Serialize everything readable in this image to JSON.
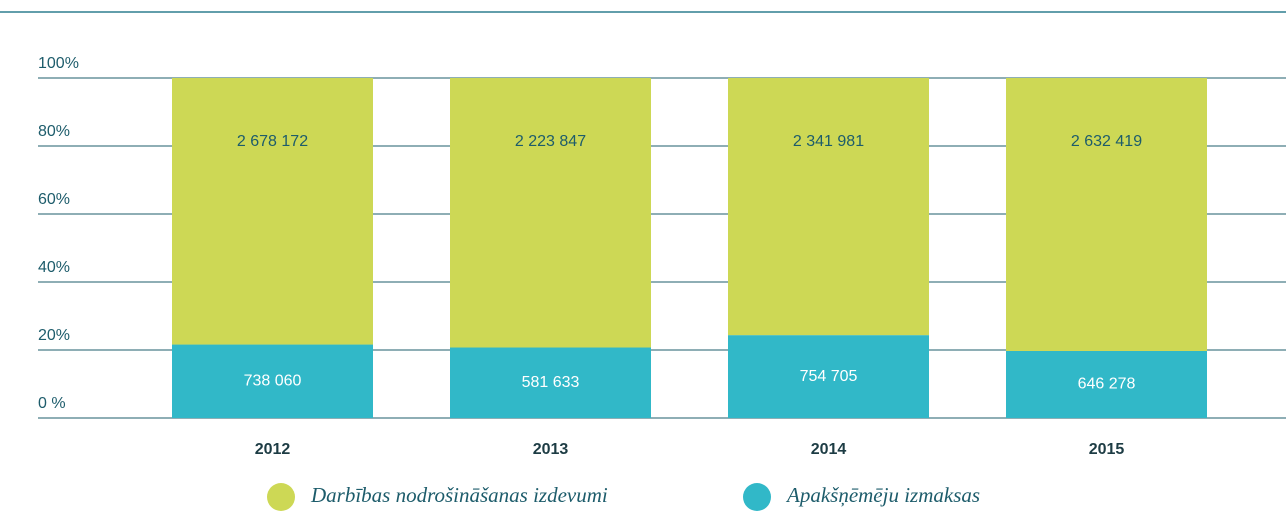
{
  "chart_data": {
    "type": "bar",
    "stacked": "percent",
    "categories": [
      "2012",
      "2013",
      "2014",
      "2015"
    ],
    "series": [
      {
        "name": "Darbības nodrošināšanas izdevumi",
        "color": "#cdd855",
        "values": [
          2678172,
          2223847,
          2341981,
          2632419
        ],
        "value_labels": [
          "2 678 172",
          "2 223 847",
          "2 341 981",
          "2 632 419"
        ]
      },
      {
        "name": "Apakšņēmēju izmaksas",
        "color": "#31b8c8",
        "values": [
          738060,
          581633,
          754705,
          646278
        ],
        "value_labels": [
          "738 060",
          "581 633",
          "754 705",
          "646 278"
        ]
      }
    ],
    "ylim": [
      0,
      100
    ],
    "yticks": [
      {
        "value": 0,
        "label": "0 %"
      },
      {
        "value": 20,
        "label": "20%"
      },
      {
        "value": 40,
        "label": "40%"
      },
      {
        "value": 60,
        "label": "60%"
      },
      {
        "value": 80,
        "label": "80%"
      },
      {
        "value": 100,
        "label": "100%"
      }
    ],
    "grid": true
  }
}
